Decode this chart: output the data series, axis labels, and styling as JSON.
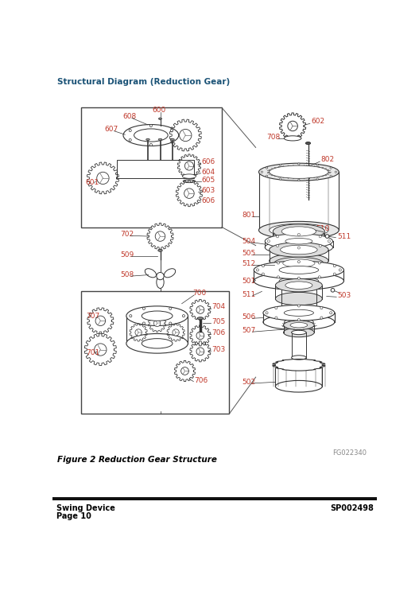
{
  "title": "Structural Diagram (Reduction Gear)",
  "figure_caption": "Figure 2 Reduction Gear Structure",
  "figure_id": "FG022340",
  "footer_left_line1": "Swing Device",
  "footer_left_line2": "Page 10",
  "footer_right": "SP002498",
  "bg_color": "#ffffff",
  "title_color": "#1a5276",
  "label_color": "#c0392b",
  "line_color": "#333333",
  "footer_bar_color": "#111111",
  "lw_main": 0.8,
  "lw_thin": 0.5,
  "lw_leader": 0.5
}
